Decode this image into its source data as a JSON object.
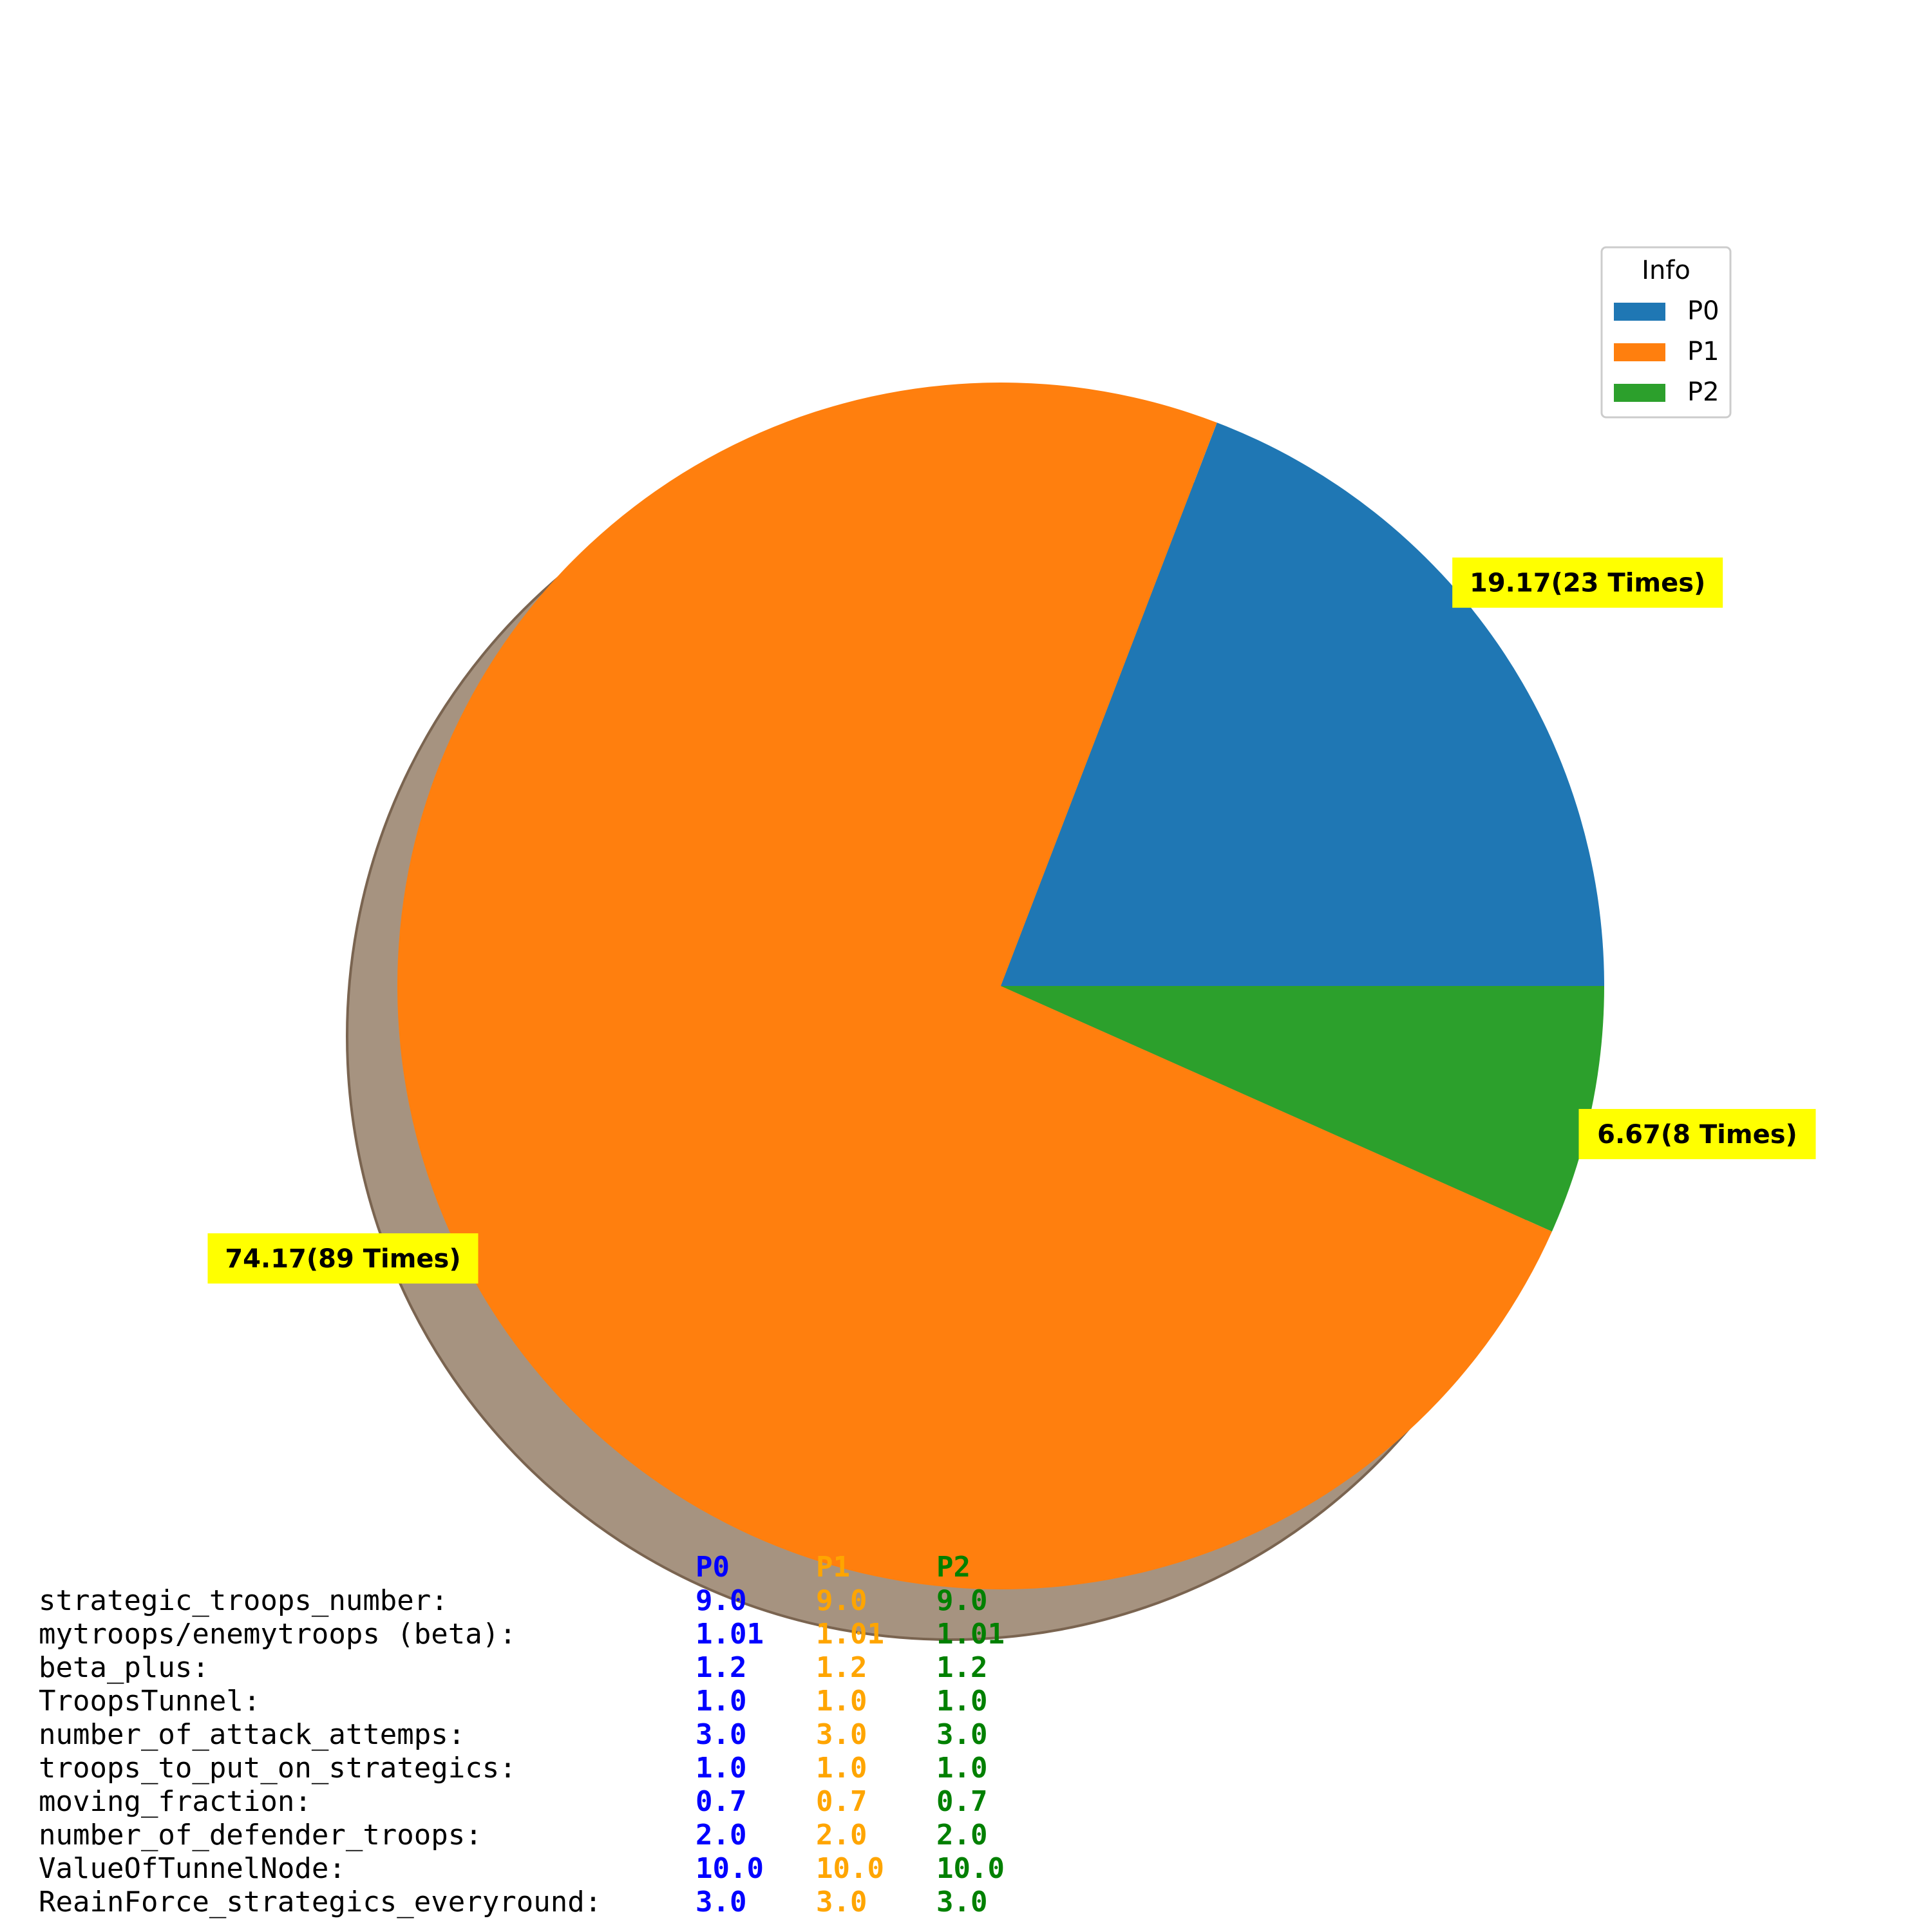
{
  "chart_data": {
    "type": "pie",
    "labels": [
      "P0",
      "P1",
      "P2"
    ],
    "values": [
      19.17,
      74.17,
      6.67
    ],
    "counts": [
      23,
      89,
      8
    ],
    "slice_labels": [
      "19.17(23 Times)",
      "74.17(89 Times)",
      "6.67(8 Times)"
    ],
    "colors": [
      "#1f77b4",
      "#ff7f0e",
      "#2ca02c"
    ],
    "label_box_color": "#ffff00",
    "shadow_color": "#a69380",
    "start_angle_deg": 0,
    "counterclockwise": true,
    "shadow": true,
    "legend": {
      "title": "Info",
      "position": "top-right",
      "entries": [
        "P0",
        "P1",
        "P2"
      ]
    }
  },
  "params_table": {
    "headers": [
      "P0",
      "P1",
      "P2"
    ],
    "header_colors": [
      "#0000ff",
      "#ffa500",
      "#008000"
    ],
    "rows": [
      {
        "name": "strategic_troops_number:",
        "values": [
          "9.0",
          "9.0",
          "9.0"
        ]
      },
      {
        "name": "mytroops/enemytroops (beta):",
        "values": [
          "1.01",
          "1.01",
          "1.01"
        ]
      },
      {
        "name": "beta_plus:",
        "values": [
          "1.2",
          "1.2",
          "1.2"
        ]
      },
      {
        "name": "TroopsTunnel:",
        "values": [
          "1.0",
          "1.0",
          "1.0"
        ]
      },
      {
        "name": "number_of_attack_attemps:",
        "values": [
          "3.0",
          "3.0",
          "3.0"
        ]
      },
      {
        "name": "troops_to_put_on_strategics:",
        "values": [
          "1.0",
          "1.0",
          "1.0"
        ]
      },
      {
        "name": "moving_fraction:",
        "values": [
          "0.7",
          "0.7",
          "0.7"
        ]
      },
      {
        "name": "number_of_defender_troops:",
        "values": [
          "2.0",
          "2.0",
          "2.0"
        ]
      },
      {
        "name": "ValueOfTunnelNode:",
        "values": [
          "10.0",
          "10.0",
          "10.0"
        ]
      },
      {
        "name": "ReainForce_strategics_everyround:",
        "values": [
          "3.0",
          "3.0",
          "3.0"
        ]
      }
    ]
  }
}
